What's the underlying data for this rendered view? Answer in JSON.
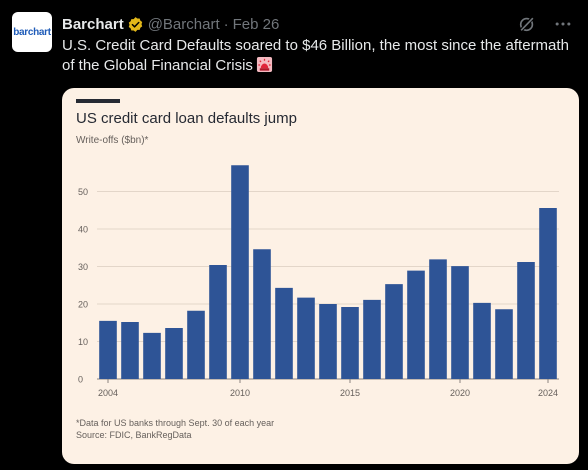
{
  "tweet": {
    "avatar_text": "barchart",
    "display_name": "Barchart",
    "handle": "@Barchart",
    "separator": "·",
    "date": "Feb 26",
    "text": "U.S. Credit Card Defaults soared to $46 Billion, the most since the aftermath of the Global Financial Crisis",
    "icons": [
      "verified-badge-icon",
      "grok-icon",
      "more-icon",
      "siren-emoji-icon"
    ],
    "colors": {
      "background": "#000000",
      "text": "#e7e9ea",
      "muted": "#71767b",
      "verified": "#e2b719"
    }
  },
  "chart_data": {
    "type": "bar",
    "title": "US credit card loan defaults jump",
    "ylabel": "Write-offs ($bn)*",
    "categories": [
      "2004",
      "2005",
      "2006",
      "2007",
      "2008",
      "2009",
      "2010",
      "2011",
      "2012",
      "2013",
      "2014",
      "2015",
      "2016",
      "2017",
      "2018",
      "2019",
      "2020",
      "2021",
      "2022",
      "2023",
      "2024"
    ],
    "x_tick_labels": [
      "2004",
      "2010",
      "2015",
      "2020",
      "2024"
    ],
    "y_tick_labels": [
      "0",
      "10",
      "20",
      "30",
      "40",
      "50"
    ],
    "values": [
      15.5,
      15.2,
      12.3,
      13.6,
      18.2,
      30.4,
      57.0,
      34.6,
      24.3,
      21.7,
      20.0,
      19.2,
      21.1,
      25.3,
      28.9,
      31.9,
      30.1,
      20.3,
      18.6,
      31.2,
      45.6
    ],
    "ylim": [
      0,
      60
    ],
    "grid": true,
    "bar_color": "#2e5496",
    "background": "#fdf1e5",
    "footnote": "*Data for US banks through Sept. 30 of each year",
    "source": "Source: FDIC, BankRegData"
  }
}
